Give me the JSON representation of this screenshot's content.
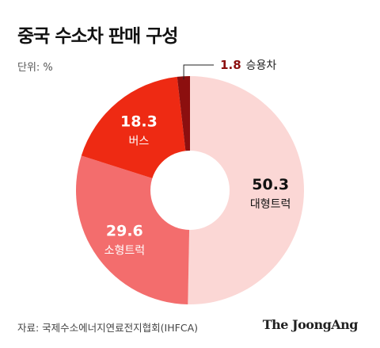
{
  "title": "중국 수소차 판매 구성",
  "unit_label": "단위: %",
  "source": "자료: 국제수소에너지연료전지협회(IHFCA)",
  "brand": "The JoongAng",
  "chart_data": {
    "type": "pie",
    "donut": true,
    "title": "중국 수소차 판매 구성",
    "unit": "%",
    "slices": [
      {
        "label": "대형트럭",
        "value": 50.3,
        "color": "#fbd7d5",
        "text_color": "#111111"
      },
      {
        "label": "소형트럭",
        "value": 29.6,
        "color": "#f36d6d",
        "text_color": "#ffffff"
      },
      {
        "label": "버스",
        "value": 18.3,
        "color": "#ee2a13",
        "text_color": "#ffffff"
      },
      {
        "label": "승용차",
        "value": 1.8,
        "color": "#8c0f0f",
        "text_color": "#8c0f0f"
      }
    ]
  }
}
